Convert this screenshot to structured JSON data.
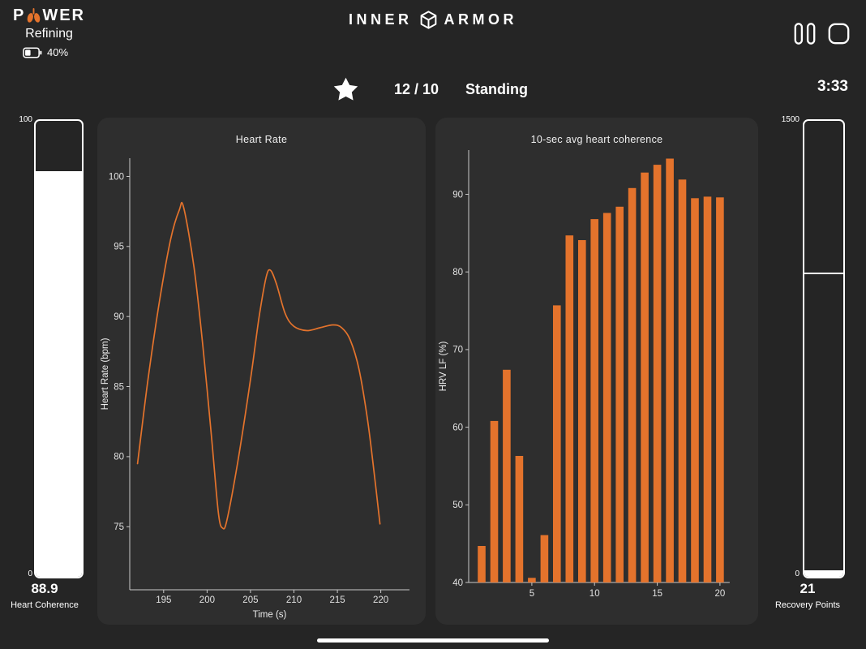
{
  "colors": {
    "background": "#252525",
    "panel": "#2e2e2e",
    "accent": "#e4732c",
    "white": "#ffffff"
  },
  "icons": [
    "lungs-icon",
    "battery-icon",
    "cube-icon",
    "pause-icon",
    "stop-icon",
    "star-icon",
    "home-indicator"
  ],
  "header": {
    "program_prefix": "P",
    "program_suffix": "WER",
    "phase": "Refining",
    "battery_percent": "40%",
    "brand_left": "INNER",
    "brand_right": "ARMOR"
  },
  "session": {
    "reps": "12 / 10",
    "position": "Standing",
    "timer": "3:33"
  },
  "left_gauge": {
    "max_label": "100",
    "min_label": "0",
    "value": "88.9",
    "label": "Heart Coherence",
    "fill_percent": 88.9
  },
  "right_gauge": {
    "max_label": "1500",
    "min_label": "0",
    "value": "21",
    "label": "Recovery Points",
    "fill_percent": 1.4,
    "marker_percent": 33.3
  },
  "chart_data": [
    {
      "type": "line",
      "title": "Heart Rate",
      "xlabel": "Time (s)",
      "ylabel": "Heart Rate (bpm)",
      "color": "#e4732c",
      "xlim": [
        191.1,
        223.3
      ],
      "ylim": [
        70.5,
        101.3
      ],
      "xticks": [
        195,
        200,
        205,
        210,
        215,
        220
      ],
      "yticks": [
        75,
        80,
        85,
        90,
        95,
        100
      ],
      "x": [
        192,
        193.2,
        194.5,
        195.8,
        196.8,
        197.3,
        198.5,
        199.5,
        200.5,
        201.3,
        201.8,
        202.3,
        203.5,
        205,
        206,
        206.8,
        207.3,
        208,
        209,
        210,
        211.5,
        213,
        214.5,
        215.5,
        216.5,
        217.5,
        218.5,
        219.3,
        219.9
      ],
      "y": [
        79.5,
        85.5,
        91,
        95.5,
        97.6,
        97.8,
        93.5,
        88,
        81.5,
        76,
        74.9,
        75.5,
        79.5,
        85.5,
        90,
        92.8,
        93.3,
        92.3,
        90.2,
        89.3,
        89.0,
        89.2,
        89.4,
        89.2,
        88.3,
        86.2,
        82.5,
        78.5,
        75.2
      ]
    },
    {
      "type": "bar",
      "title": "10-sec avg heart coherence",
      "xlabel": "",
      "ylabel": "HRV LF (%)",
      "color": "#e4732c",
      "ylim": [
        40,
        95.8
      ],
      "yticks": [
        40,
        50,
        60,
        70,
        80,
        90
      ],
      "xticks": [
        5,
        10,
        15,
        20
      ],
      "categories": [
        1,
        2,
        3,
        4,
        5,
        6,
        7,
        8,
        9,
        10,
        11,
        12,
        13,
        14,
        15,
        16,
        17,
        18,
        19,
        20
      ],
      "values": [
        44.7,
        60.8,
        67.4,
        56.3,
        40.6,
        46.1,
        75.7,
        84.7,
        84.1,
        86.8,
        87.6,
        88.4,
        90.8,
        92.8,
        93.8,
        94.6,
        91.9,
        89.5,
        89.7,
        89.6
      ]
    }
  ]
}
